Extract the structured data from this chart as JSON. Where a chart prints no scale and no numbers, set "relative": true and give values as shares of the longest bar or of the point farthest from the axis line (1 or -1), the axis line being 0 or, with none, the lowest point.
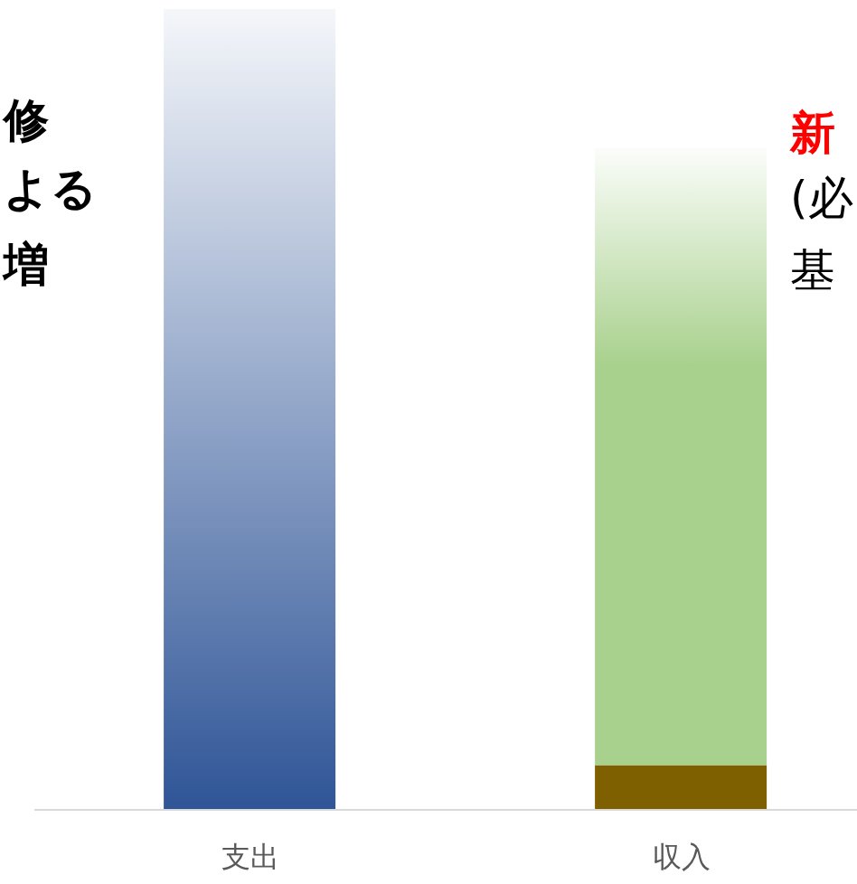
{
  "chart_data": {
    "type": "bar",
    "relative": true,
    "stacked": true,
    "categories": [
      "支出",
      "収入"
    ],
    "series": [
      {
        "colors": [
          "#2f5597",
          "#7f6000"
        ],
        "values": [
          1,
          0.056
        ]
      },
      {
        "colors": [
          "#a9d18e",
          "#a9d18e"
        ],
        "values": [
          null,
          0.77
        ]
      }
    ],
    "annotations": [
      "修",
      "よる",
      "増",
      "新",
      "(必",
      "基"
    ],
    "grid": false
  }
}
